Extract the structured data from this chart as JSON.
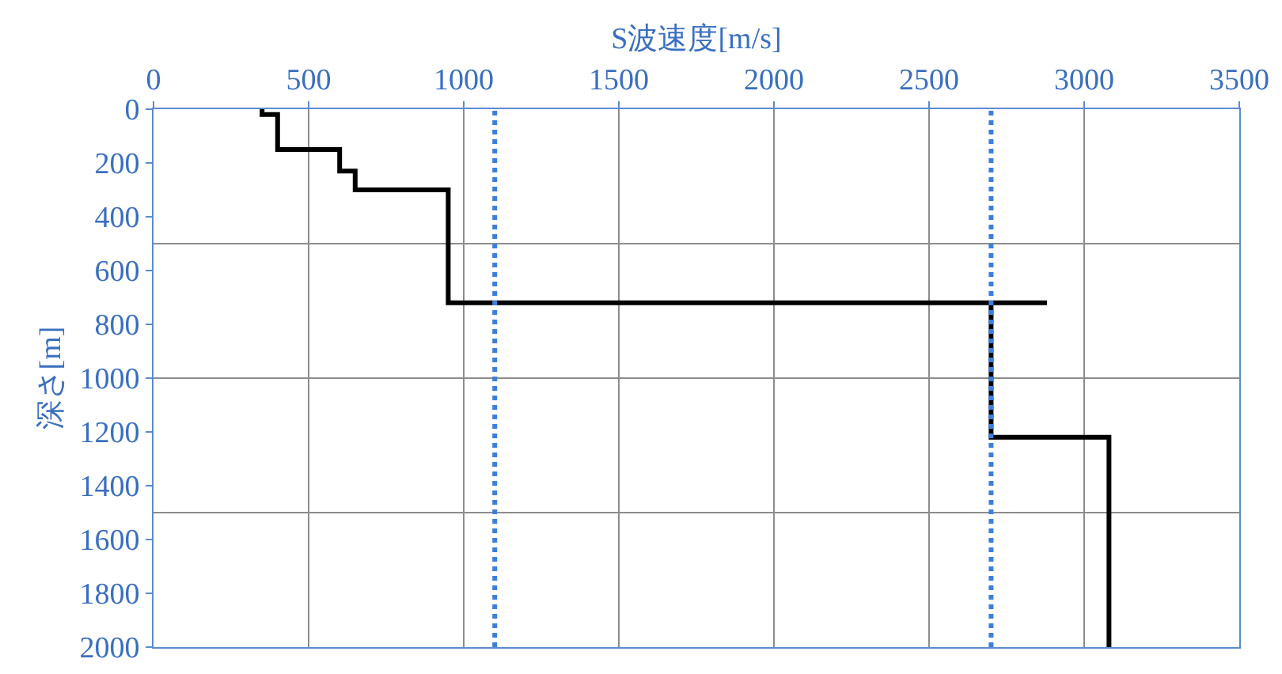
{
  "chart_data": {
    "type": "line",
    "xlabel": "S波速度[m/s]",
    "ylabel": "深さ[m]",
    "x": [
      350,
      350,
      400,
      400,
      600,
      600,
      650,
      650,
      950,
      950,
      2880,
      2700,
      2700,
      3080,
      3080
    ],
    "series": [
      {
        "color": "#000000",
        "values": [
          0,
          20,
          20,
          150,
          150,
          230,
          230,
          300,
          300,
          720,
          720,
          720,
          1220,
          1220,
          2000
        ]
      }
    ],
    "xlim": [
      0,
      3500
    ],
    "xticks": [
      0,
      500,
      1000,
      1500,
      2000,
      2500,
      3000,
      3500
    ],
    "ylim": [
      2000,
      0
    ],
    "yticks": [
      0,
      200,
      400,
      600,
      800,
      1000,
      1200,
      1400,
      1600,
      1800,
      2000
    ],
    "grid": "x",
    "marker": "none",
    "line_style": "solid",
    "ref_lines": [
      {
        "axis": "x",
        "value": 1100,
        "color": "#3a7fdc",
        "line_style": "dotted"
      },
      {
        "axis": "x",
        "value": 2700,
        "color": "#3a7fdc",
        "line_style": "dotted"
      },
      {
        "axis": "y",
        "value": 500,
        "color": "#8c8c8c",
        "line_style": "solid"
      },
      {
        "axis": "y",
        "value": 1000,
        "color": "#8c8c8c",
        "line_style": "solid"
      },
      {
        "axis": "y",
        "value": 1500,
        "color": "#8c8c8c",
        "line_style": "solid"
      }
    ]
  }
}
